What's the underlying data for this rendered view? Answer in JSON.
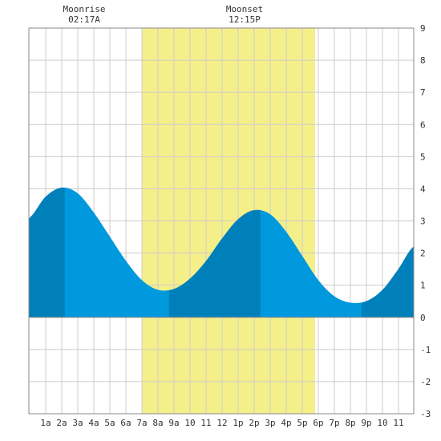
{
  "chart_data": {
    "type": "area",
    "x_unit": "hour of day",
    "xlim": [
      -0.05,
      23.95
    ],
    "ylim": [
      -3,
      9
    ],
    "grid": true,
    "x_tick_labels": [
      {
        "x": 1,
        "label": "1a"
      },
      {
        "x": 2,
        "label": "2a"
      },
      {
        "x": 3,
        "label": "3a"
      },
      {
        "x": 4,
        "label": "4a"
      },
      {
        "x": 5,
        "label": "5a"
      },
      {
        "x": 6,
        "label": "6a"
      },
      {
        "x": 7,
        "label": "7a"
      },
      {
        "x": 8,
        "label": "8a"
      },
      {
        "x": 9,
        "label": "9a"
      },
      {
        "x": 10,
        "label": "10"
      },
      {
        "x": 11,
        "label": "11"
      },
      {
        "x": 12,
        "label": "12"
      },
      {
        "x": 13,
        "label": "1p"
      },
      {
        "x": 14,
        "label": "2p"
      },
      {
        "x": 15,
        "label": "3p"
      },
      {
        "x": 16,
        "label": "4p"
      },
      {
        "x": 17,
        "label": "5p"
      },
      {
        "x": 18,
        "label": "6p"
      },
      {
        "x": 19,
        "label": "7p"
      },
      {
        "x": 20,
        "label": "8p"
      },
      {
        "x": 21,
        "label": "9p"
      },
      {
        "x": 22,
        "label": "10"
      },
      {
        "x": 23,
        "label": "11"
      }
    ],
    "y_ticks": [
      -3,
      -2,
      -1,
      0,
      1,
      2,
      3,
      4,
      5,
      6,
      7,
      8,
      9
    ],
    "daylight": [
      7.0,
      17.8
    ],
    "moon_events": [
      {
        "name": "Moonrise",
        "time": "02:17A",
        "x": 3.4
      },
      {
        "name": "Moonset",
        "time": "12:15P",
        "x": 13.4
      }
    ],
    "tide_extremes": [
      {
        "x": 2.2,
        "y": 4.05,
        "type": "high"
      },
      {
        "x": 8.7,
        "y": 0.85,
        "type": "low"
      },
      {
        "x": 14.4,
        "y": 3.35,
        "type": "high"
      },
      {
        "x": 20.7,
        "y": 0.45,
        "type": "low"
      }
    ],
    "series": [
      {
        "color_light": "#0099dd",
        "color_dark": "#0080bb",
        "x": [
          -0.05,
          0,
          1,
          2,
          3,
          4,
          5,
          6,
          7,
          8,
          9,
          10,
          11,
          12,
          13,
          14,
          15,
          16,
          17,
          18,
          19,
          20,
          21,
          22,
          23,
          23.95
        ],
        "y": [
          3.05,
          3.1,
          3.75,
          4.03,
          3.85,
          3.25,
          2.5,
          1.75,
          1.15,
          0.85,
          0.88,
          1.2,
          1.75,
          2.45,
          3.05,
          3.33,
          3.2,
          2.65,
          1.9,
          1.15,
          0.65,
          0.45,
          0.5,
          0.85,
          1.5,
          2.2
        ]
      }
    ],
    "colors": {
      "background": "#ffffff",
      "daylight": "#f5ef8a",
      "grid": "#cccccc",
      "axis": "#888888",
      "label": "#333333"
    }
  }
}
